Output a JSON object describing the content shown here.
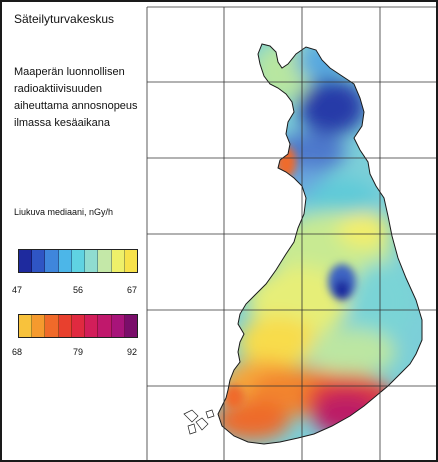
{
  "header": {
    "organization": "Säteilyturvakeskus"
  },
  "caption": {
    "lines": [
      "Maaperän luonnollisen",
      "radioaktiivisuuden",
      "aiheuttama annosnopeus",
      "ilmassa kesäaikana"
    ]
  },
  "legend": {
    "title": "Liukuva mediaani, nGy/h",
    "low_scale": {
      "tick_labels": [
        "47",
        "56",
        "67"
      ],
      "colors": [
        "#1e2a9e",
        "#2f55c4",
        "#3f86dc",
        "#4cb6e8",
        "#5fd3e2",
        "#8fdcd0",
        "#c4e8a8",
        "#eef06a",
        "#f8e24a"
      ]
    },
    "high_scale": {
      "tick_labels": [
        "68",
        "79",
        "92"
      ],
      "colors": [
        "#f8c23c",
        "#f59a2e",
        "#f06a2a",
        "#e8402e",
        "#e02a40",
        "#d21e5a",
        "#c0186c",
        "#a8147a",
        "#7a0e6a"
      ]
    }
  }
}
